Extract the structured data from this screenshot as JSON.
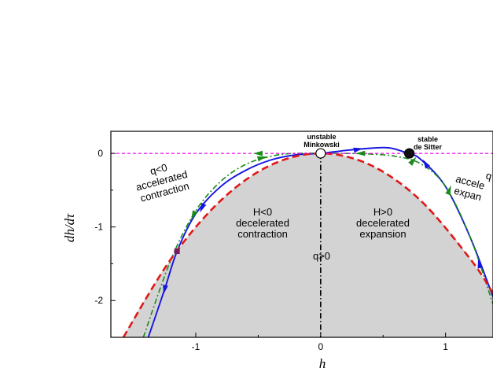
{
  "chart_data": {
    "type": "line",
    "xlabel": "h",
    "ylabel": "dh/dτ",
    "xlim": [
      -1.68,
      1.38
    ],
    "ylim": [
      -2.5,
      0.3
    ],
    "x_ticks": [
      "-1",
      "0",
      "1"
    ],
    "y_ticks": [
      "0",
      "-1",
      "-2"
    ],
    "grid": false,
    "shaded_region": {
      "description_from_curve": "dh/dτ = -h^2",
      "color": "#d3d3d3"
    },
    "series": [
      {
        "style": "blue-solid",
        "color": "#1515e0",
        "points": [
          [
            -1.38,
            -2.5
          ],
          [
            -1.25,
            -1.85
          ],
          [
            -1.15,
            -1.33
          ],
          [
            -1.0,
            -0.82
          ],
          [
            -0.8,
            -0.45
          ],
          [
            -0.6,
            -0.23
          ],
          [
            -0.4,
            -0.09
          ],
          [
            -0.2,
            -0.02
          ],
          [
            0.0,
            0.0
          ],
          [
            0.2,
            0.04
          ],
          [
            0.4,
            0.07
          ],
          [
            0.55,
            0.075
          ],
          [
            0.7,
            0.0
          ],
          [
            0.8,
            -0.08
          ],
          [
            1.0,
            -0.45
          ],
          [
            1.2,
            -1.15
          ],
          [
            1.38,
            -1.95
          ]
        ]
      },
      {
        "style": "green-dash-dot",
        "color": "#1a8c1a",
        "points": [
          [
            -1.42,
            -2.5
          ],
          [
            -1.2,
            -1.45
          ],
          [
            -1.0,
            -0.78
          ],
          [
            -0.8,
            -0.38
          ],
          [
            -0.6,
            -0.15
          ],
          [
            -0.4,
            -0.04
          ],
          [
            -0.2,
            0.0
          ],
          [
            0.2,
            0.0
          ],
          [
            0.4,
            -0.01
          ],
          [
            0.6,
            -0.04
          ],
          [
            0.8,
            -0.14
          ],
          [
            1.0,
            -0.45
          ],
          [
            1.2,
            -1.15
          ],
          [
            1.38,
            -2.05
          ]
        ]
      },
      {
        "style": "red-dashed",
        "color": "#e01818",
        "points": [
          [
            -1.58,
            -2.5
          ],
          [
            -1.2,
            -1.44
          ],
          [
            -0.8,
            -0.64
          ],
          [
            -0.4,
            -0.16
          ],
          [
            0.0,
            0.0
          ],
          [
            0.4,
            -0.16
          ],
          [
            0.8,
            -0.64
          ],
          [
            1.2,
            -1.44
          ],
          [
            1.38,
            -1.9
          ]
        ]
      },
      {
        "style": "magenta-dashed",
        "color": "#ee00ee",
        "points": [
          [
            -1.68,
            0.0
          ],
          [
            1.38,
            0.0
          ]
        ]
      }
    ],
    "fixed_points": [
      {
        "name": "unstable Minkowski",
        "x": 0.0,
        "y": 0.0,
        "fill": "#ffffff"
      },
      {
        "name": "stable de Sitter",
        "x": 0.71,
        "y": 0.0,
        "fill": "#111111"
      }
    ],
    "marker_point": {
      "x": -1.15,
      "y": -1.33,
      "color": "#7a1a5a"
    },
    "annotations": {
      "q_gt_0": "q>0",
      "left_shaded": [
        "H<0",
        "decelerated",
        "contraction"
      ],
      "right_shaded": [
        "H>0",
        "decelerated",
        "expansion"
      ],
      "left_outer": [
        "q<0",
        "accelerated",
        "contraction"
      ],
      "right_outer": [
        "q",
        "accele",
        "expan"
      ],
      "minkowski": [
        "unstable",
        "Minkowski"
      ],
      "de_sitter": [
        "stable",
        "de Sitter"
      ]
    }
  }
}
